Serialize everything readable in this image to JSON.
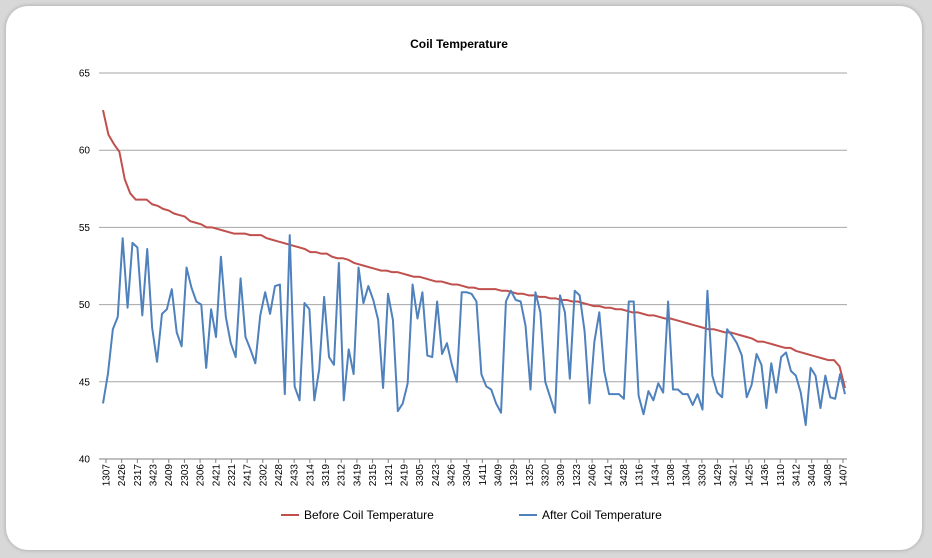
{
  "chart_data": {
    "type": "line",
    "title": "Coil Temperature",
    "xlabel": "",
    "ylabel": "",
    "ylim": [
      40,
      65
    ],
    "yticks": [
      40,
      45,
      50,
      55,
      60,
      65
    ],
    "grid": true,
    "legend_position": "bottom",
    "x_tick_labels": [
      "1307",
      "2426",
      "2317",
      "3423",
      "2409",
      "2303",
      "2306",
      "2421",
      "2321",
      "2417",
      "2302",
      "2428",
      "2433",
      "2314",
      "3319",
      "2312",
      "3419",
      "2315",
      "1321",
      "2419",
      "3305",
      "2423",
      "3426",
      "3304",
      "1411",
      "3409",
      "1329",
      "1325",
      "3320",
      "3309",
      "1323",
      "2406",
      "1421",
      "3428",
      "1316",
      "1434",
      "1308",
      "1304",
      "3303",
      "1429",
      "3421",
      "1425",
      "1436",
      "1310",
      "3412",
      "3404",
      "3408",
      "1407"
    ],
    "colors": {
      "Before Coil Temperature": "#c0504d",
      "After Coil Temperature": "#4f81bd"
    },
    "series": [
      {
        "name": "Before Coil Temperature",
        "values": [
          62.6,
          61.0,
          60.4,
          59.9,
          58.1,
          57.2,
          56.8,
          56.8,
          56.8,
          56.5,
          56.4,
          56.2,
          56.1,
          55.9,
          55.8,
          55.7,
          55.4,
          55.3,
          55.2,
          55.0,
          55.0,
          54.9,
          54.8,
          54.7,
          54.6,
          54.6,
          54.6,
          54.5,
          54.5,
          54.5,
          54.3,
          54.2,
          54.1,
          54.0,
          53.9,
          53.8,
          53.7,
          53.6,
          53.4,
          53.4,
          53.3,
          53.3,
          53.1,
          53.0,
          53.0,
          52.9,
          52.7,
          52.6,
          52.5,
          52.4,
          52.3,
          52.2,
          52.2,
          52.1,
          52.1,
          52.0,
          51.9,
          51.8,
          51.8,
          51.7,
          51.6,
          51.5,
          51.5,
          51.4,
          51.3,
          51.3,
          51.2,
          51.1,
          51.1,
          51.0,
          51.0,
          51.0,
          51.0,
          50.9,
          50.9,
          50.8,
          50.7,
          50.7,
          50.6,
          50.6,
          50.5,
          50.5,
          50.4,
          50.4,
          50.3,
          50.3,
          50.2,
          50.2,
          50.1,
          50.0,
          49.9,
          49.9,
          49.8,
          49.8,
          49.7,
          49.7,
          49.6,
          49.5,
          49.5,
          49.4,
          49.3,
          49.3,
          49.2,
          49.1,
          49.1,
          49.0,
          48.9,
          48.8,
          48.7,
          48.6,
          48.5,
          48.4,
          48.4,
          48.3,
          48.2,
          48.2,
          48.1,
          48.0,
          47.9,
          47.8,
          47.6,
          47.6,
          47.5,
          47.4,
          47.3,
          47.2,
          47.2,
          47.0,
          46.9,
          46.8,
          46.7,
          46.6,
          46.5,
          46.4,
          46.4,
          46.0,
          44.6
        ],
        "draw_order": 1
      },
      {
        "name": "After Coil Temperature",
        "values": [
          43.6,
          45.5,
          48.4,
          49.2,
          54.3,
          49.8,
          54.0,
          53.7,
          49.3,
          53.6,
          48.5,
          46.3,
          49.4,
          49.7,
          51.0,
          48.2,
          47.3,
          52.4,
          51.1,
          50.2,
          50.0,
          45.9,
          49.7,
          47.9,
          53.1,
          49.2,
          47.5,
          46.6,
          51.7,
          47.9,
          47.1,
          46.2,
          49.3,
          50.8,
          49.4,
          51.2,
          51.3,
          44.2,
          54.5,
          44.7,
          43.8,
          50.1,
          49.7,
          43.8,
          45.8,
          50.5,
          46.6,
          46.1,
          52.7,
          43.8,
          47.1,
          45.5,
          52.4,
          50.1,
          51.2,
          50.3,
          49.0,
          44.6,
          50.7,
          49.0,
          43.1,
          43.6,
          44.9,
          51.3,
          49.1,
          50.8,
          46.7,
          46.6,
          50.2,
          46.8,
          47.5,
          46.1,
          45.0,
          50.8,
          50.8,
          50.7,
          50.2,
          45.5,
          44.7,
          44.5,
          43.6,
          43.0,
          50.2,
          50.9,
          50.3,
          50.2,
          48.6,
          44.5,
          50.8,
          49.5,
          45.0,
          44.0,
          43.0,
          50.6,
          49.5,
          45.2,
          50.9,
          50.6,
          48.3,
          43.6,
          47.6,
          49.5,
          45.7,
          44.2,
          44.2,
          44.2,
          43.9,
          50.2,
          50.2,
          44.1,
          42.9,
          44.4,
          43.8,
          44.9,
          44.3,
          50.2,
          44.5,
          44.5,
          44.2,
          44.2,
          43.5,
          44.2,
          43.2,
          50.9,
          45.4,
          44.3,
          44.0,
          48.4,
          48.0,
          47.5,
          46.7,
          44.0,
          44.8,
          46.8,
          46.1,
          43.3,
          46.2,
          44.3,
          46.6,
          46.9,
          45.7,
          45.4,
          44.3,
          42.2,
          45.9,
          45.4,
          43.3,
          45.4,
          44.0,
          43.9,
          45.5,
          44.2
        ],
        "draw_order": 2
      }
    ]
  }
}
